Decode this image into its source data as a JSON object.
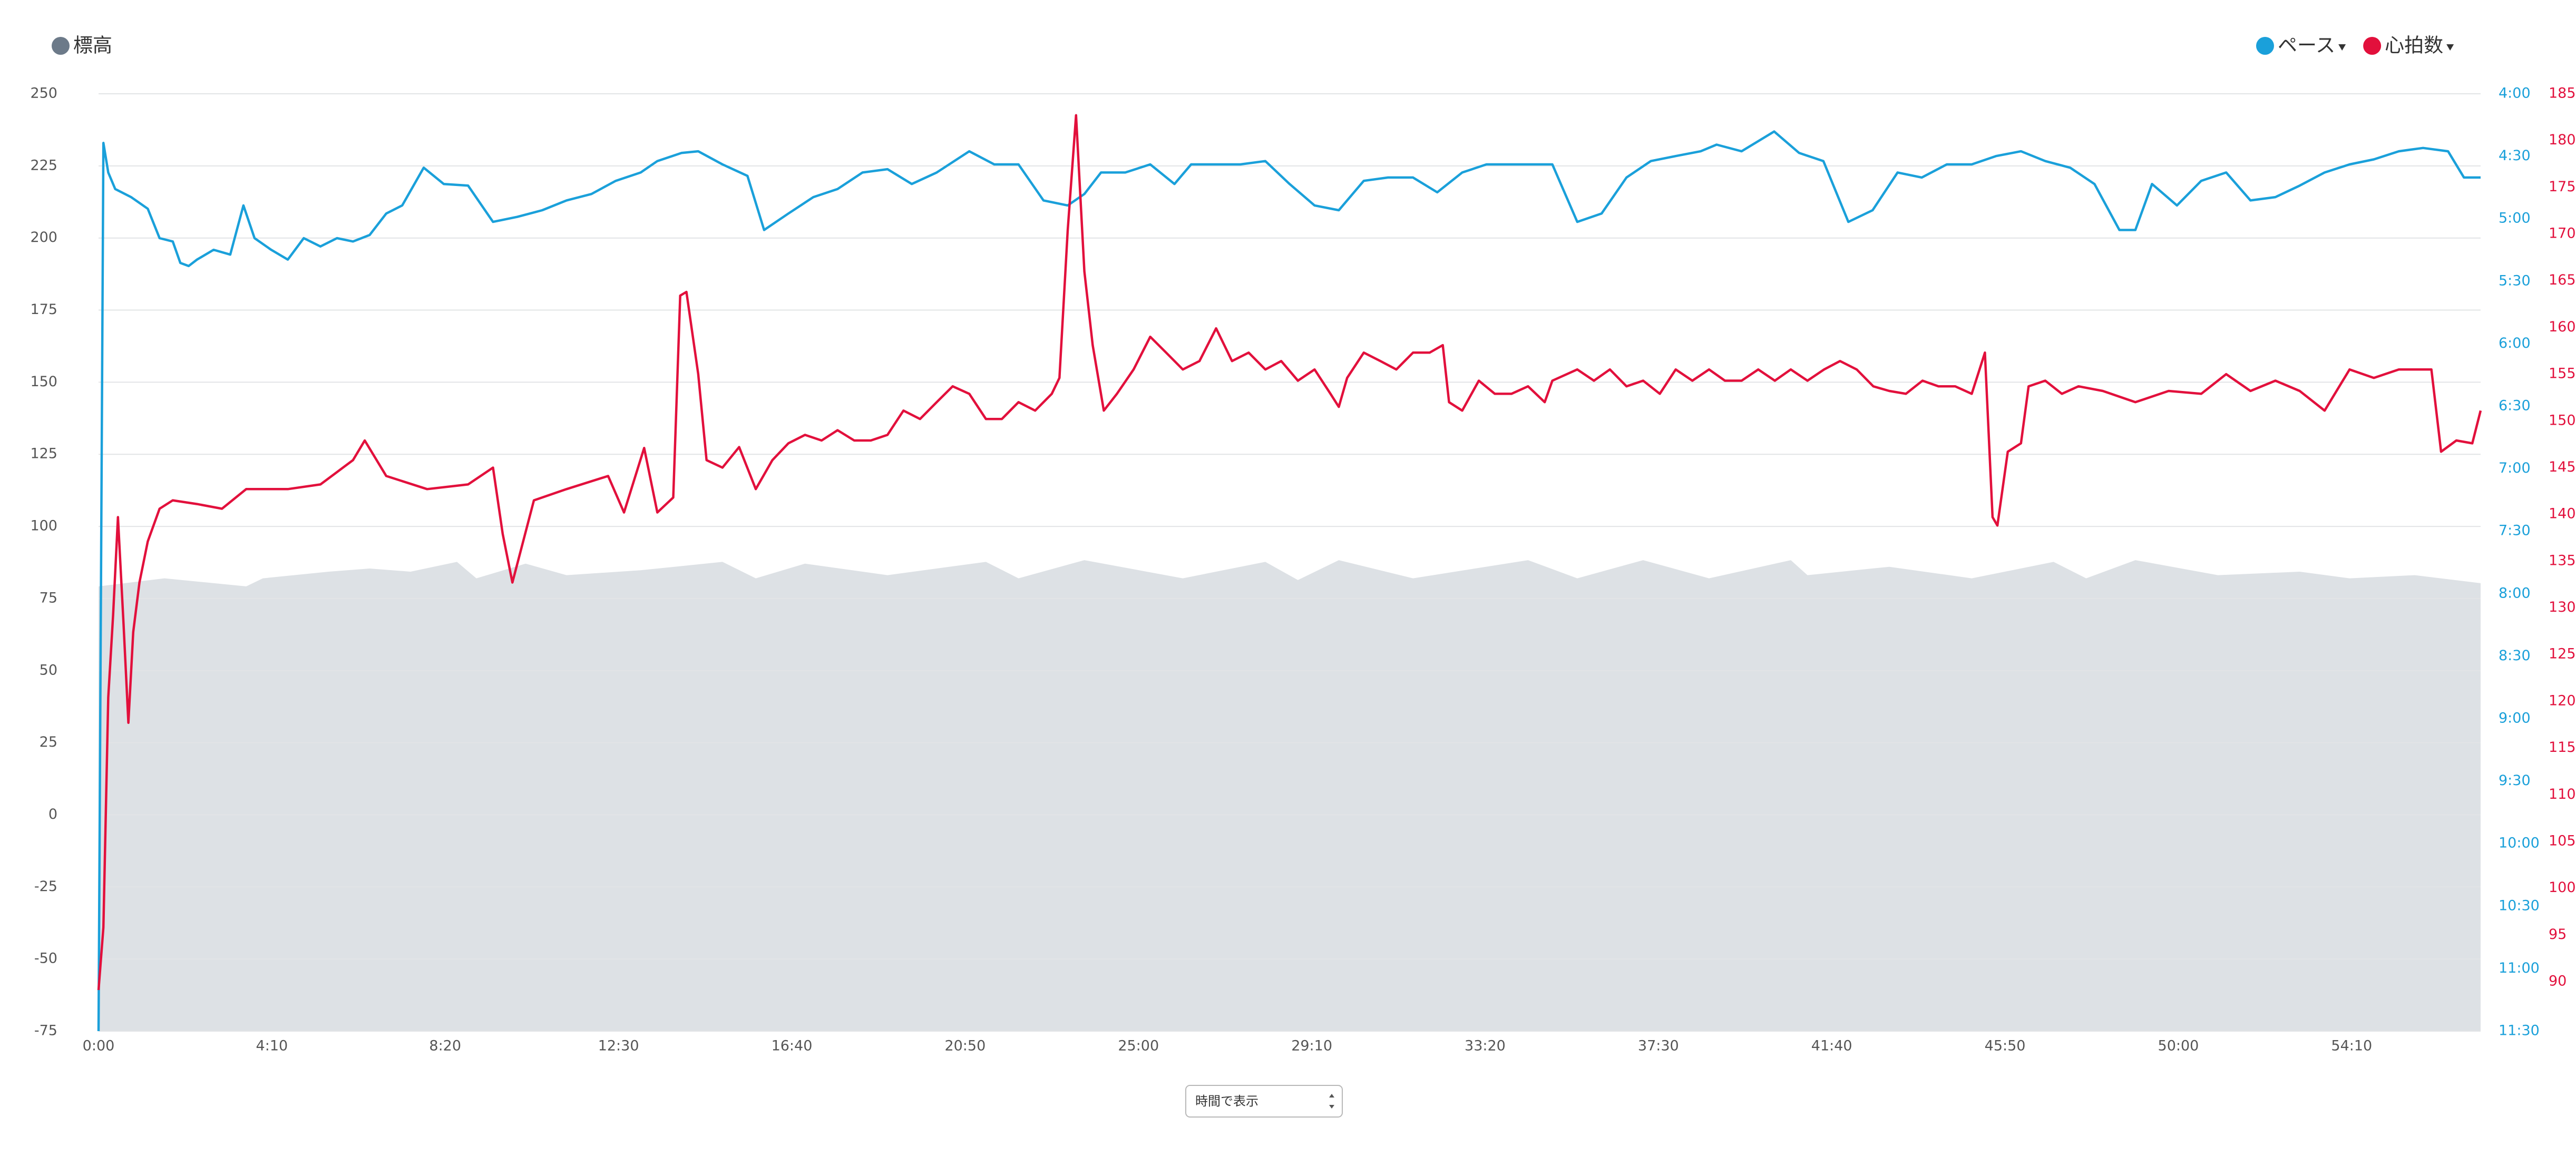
{
  "chart_data": {
    "type": "line",
    "xlim": [
      0,
      3436
    ],
    "xticks": [
      {
        "value": 0,
        "label": "0:00"
      },
      {
        "value": 250,
        "label": "4:10"
      },
      {
        "value": 500,
        "label": "8:20"
      },
      {
        "value": 750,
        "label": "12:30"
      },
      {
        "value": 1000,
        "label": "16:40"
      },
      {
        "value": 1250,
        "label": "20:50"
      },
      {
        "value": 1500,
        "label": "25:00"
      },
      {
        "value": 1750,
        "label": "29:10"
      },
      {
        "value": 2000,
        "label": "33:20"
      },
      {
        "value": 2250,
        "label": "37:30"
      },
      {
        "value": 2500,
        "label": "41:40"
      },
      {
        "value": 2750,
        "label": "45:50"
      },
      {
        "value": 3000,
        "label": "50:00"
      },
      {
        "value": 3250,
        "label": "54:10"
      }
    ],
    "ylim": [
      -75,
      250
    ],
    "yticks": [
      -75,
      -50,
      -25,
      0,
      25,
      50,
      75,
      100,
      125,
      150,
      175,
      200,
      225,
      250
    ],
    "y2lim": [
      240,
      690
    ],
    "y2_inverted": true,
    "y2ticks": [
      {
        "value": 240,
        "label": "4:00"
      },
      {
        "value": 270,
        "label": "4:30"
      },
      {
        "value": 300,
        "label": "5:00"
      },
      {
        "value": 330,
        "label": "5:30"
      },
      {
        "value": 360,
        "label": "6:00"
      },
      {
        "value": 390,
        "label": "6:30"
      },
      {
        "value": 420,
        "label": "7:00"
      },
      {
        "value": 450,
        "label": "7:30"
      },
      {
        "value": 480,
        "label": "8:00"
      },
      {
        "value": 510,
        "label": "8:30"
      },
      {
        "value": 540,
        "label": "9:00"
      },
      {
        "value": 570,
        "label": "9:30"
      },
      {
        "value": 600,
        "label": "10:00"
      },
      {
        "value": 630,
        "label": "10:30"
      },
      {
        "value": 660,
        "label": "11:00"
      },
      {
        "value": 690,
        "label": "11:30"
      }
    ],
    "y3lim": [
      84.7,
      185
    ],
    "y3ticks": [
      90,
      95,
      100,
      105,
      110,
      115,
      120,
      125,
      130,
      135,
      140,
      145,
      150,
      155,
      160,
      165,
      170,
      175,
      180,
      185
    ],
    "grid": true,
    "series": [
      {
        "name": "標高",
        "type": "area",
        "axis": "y",
        "color": "#6c7a89",
        "fill": "#dde1e5",
        "legend_position": "top-left",
        "dropdown": false,
        "x": [
          0,
          95,
          213,
          237,
          332,
          391,
          450,
          517,
          545,
          616,
          675,
          782,
          900,
          948,
          1019,
          1138,
          1280,
          1327,
          1422,
          1564,
          1683,
          1730,
          1789,
          1896,
          2062,
          2133,
          2228,
          2323,
          2441,
          2465,
          2583,
          2702,
          2820,
          2867,
          2938,
          3057,
          3175,
          3247,
          3341,
          3436
        ],
        "values": [
          79.2,
          82,
          79.2,
          82,
          84.3,
          85.4,
          84.3,
          87.7,
          82,
          87.1,
          83.1,
          84.8,
          87.7,
          82,
          87.1,
          83.1,
          87.7,
          82,
          88.3,
          82,
          87.7,
          81.4,
          88.3,
          82,
          88.3,
          82,
          88.3,
          82,
          88.3,
          83.1,
          86,
          82,
          87.7,
          82,
          88.3,
          83.1,
          84.3,
          82,
          83.1,
          80.3
        ]
      },
      {
        "name": "ペース",
        "type": "line",
        "axis": "y2",
        "color": "#1aa0da",
        "legend_position": "top-right",
        "dropdown": true,
        "x": [
          0,
          7,
          14,
          24,
          47,
          71,
          88,
          107,
          118,
          130,
          142,
          166,
          190,
          209,
          225,
          249,
          273,
          296,
          320,
          344,
          367,
          391,
          415,
          438,
          469,
          498,
          533,
          569,
          604,
          640,
          675,
          711,
          746,
          782,
          806,
          841,
          865,
          900,
          936,
          960,
          995,
          1031,
          1066,
          1102,
          1138,
          1173,
          1209,
          1256,
          1292,
          1327,
          1363,
          1398,
          1422,
          1446,
          1481,
          1517,
          1552,
          1576,
          1611,
          1647,
          1683,
          1718,
          1754,
          1789,
          1825,
          1860,
          1896,
          1931,
          1967,
          2002,
          2050,
          2097,
          2133,
          2168,
          2204,
          2239,
          2275,
          2311,
          2334,
          2370,
          2417,
          2453,
          2488,
          2524,
          2559,
          2595,
          2630,
          2666,
          2702,
          2737,
          2773,
          2808,
          2844,
          2879,
          2915,
          2938,
          2962,
          2998,
          3033,
          3069,
          3104,
          3140,
          3175,
          3211,
          3247,
          3282,
          3318,
          3353,
          3389,
          3412,
          3436
        ],
        "values": [
          690,
          263.6,
          277.8,
          285.7,
          289.6,
          295.2,
          309.3,
          310.9,
          321.2,
          322.7,
          319.6,
          314.9,
          317.2,
          293.6,
          309.3,
          314.9,
          319.6,
          309.3,
          313.3,
          309.3,
          310.9,
          307.8,
          297.5,
          293.6,
          275.5,
          283.3,
          284.1,
          301.5,
          299.1,
          295.9,
          291.2,
          288.1,
          281.8,
          277.8,
          272.3,
          268.4,
          267.6,
          273.9,
          279.4,
          305.4,
          297.5,
          289.6,
          285.7,
          277.8,
          276.2,
          283.3,
          277.8,
          267.6,
          273.9,
          273.9,
          291.2,
          293.6,
          288.1,
          277.8,
          277.8,
          273.9,
          283.3,
          273.9,
          273.9,
          273.9,
          272.3,
          283.3,
          293.6,
          295.9,
          281.8,
          280.2,
          280.2,
          287.3,
          277.8,
          273.9,
          273.9,
          273.9,
          301.5,
          297.5,
          280.2,
          272.3,
          269.9,
          267.6,
          264.4,
          267.6,
          258.1,
          268.4,
          272.3,
          301.5,
          295.9,
          277.8,
          280.2,
          273.9,
          273.9,
          269.9,
          267.6,
          272.3,
          275.5,
          283.3,
          305.4,
          305.4,
          283.3,
          293.6,
          281.8,
          277.8,
          291.2,
          289.6,
          284.1,
          277.8,
          273.9,
          271.5,
          267.6,
          266,
          267.6,
          280.2,
          280.2
        ]
      },
      {
        "name": "心拍数",
        "type": "line",
        "axis": "y3",
        "color": "#e2103c",
        "legend_position": "top-right",
        "dropdown": true,
        "x": [
          0,
          7,
          14,
          21,
          28,
          36,
          43,
          50,
          59,
          71,
          88,
          107,
          142,
          178,
          213,
          273,
          320,
          367,
          384,
          415,
          474,
          533,
          569,
          583,
          597,
          628,
          675,
          735,
          758,
          787,
          806,
          829,
          839,
          848,
          865,
          877,
          900,
          924,
          948,
          972,
          995,
          1019,
          1043,
          1066,
          1090,
          1114,
          1138,
          1161,
          1185,
          1209,
          1232,
          1256,
          1280,
          1303,
          1327,
          1351,
          1375,
          1386,
          1398,
          1410,
          1422,
          1434,
          1450,
          1469,
          1493,
          1517,
          1540,
          1564,
          1588,
          1612,
          1635,
          1659,
          1683,
          1706,
          1730,
          1754,
          1777,
          1789,
          1801,
          1825,
          1849,
          1872,
          1896,
          1920,
          1939,
          1948,
          1967,
          1991,
          2014,
          2038,
          2062,
          2086,
          2097,
          2133,
          2157,
          2180,
          2204,
          2228,
          2252,
          2275,
          2299,
          2323,
          2346,
          2370,
          2394,
          2418,
          2441,
          2465,
          2489,
          2512,
          2536,
          2560,
          2583,
          2607,
          2631,
          2654,
          2678,
          2702,
          2721,
          2732,
          2739,
          2754,
          2773,
          2784,
          2808,
          2832,
          2856,
          2891,
          2938,
          2986,
          3033,
          3069,
          3104,
          3140,
          3175,
          3211,
          3247,
          3282,
          3318,
          3365,
          3379,
          3401,
          3424,
          3436
        ],
        "values": [
          89.1,
          95.8,
          120.4,
          129.2,
          139.7,
          128.3,
          117.7,
          127.4,
          132.7,
          137.1,
          140.6,
          141.5,
          141.1,
          140.6,
          142.7,
          142.7,
          143.2,
          145.8,
          147.9,
          144.1,
          142.7,
          143.2,
          145,
          137.9,
          132.7,
          141.5,
          142.7,
          144.1,
          140.2,
          147.1,
          140.2,
          141.8,
          163.4,
          163.8,
          155,
          145.8,
          145,
          147.2,
          142.7,
          145.8,
          147.6,
          148.5,
          147.9,
          149,
          147.9,
          147.9,
          148.5,
          151.1,
          150.2,
          152,
          153.7,
          152.9,
          150.2,
          150.2,
          152,
          151.1,
          152.9,
          154.6,
          170.4,
          182.7,
          166,
          158.1,
          151.1,
          152.9,
          155.5,
          159,
          157.3,
          155.5,
          156.4,
          159.9,
          156.4,
          157.3,
          155.5,
          156.4,
          154.3,
          155.5,
          152.9,
          151.5,
          154.6,
          157.3,
          156.4,
          155.5,
          157.3,
          157.3,
          158.1,
          152,
          151.1,
          154.3,
          152.9,
          152.9,
          153.7,
          152,
          154.3,
          155.5,
          154.3,
          155.5,
          153.7,
          154.3,
          152.9,
          155.5,
          154.3,
          155.5,
          154.3,
          154.3,
          155.5,
          154.3,
          155.5,
          154.3,
          155.5,
          156.4,
          155.5,
          153.7,
          153.2,
          152.9,
          154.3,
          153.7,
          153.7,
          152.9,
          157.3,
          139.7,
          138.8,
          146.7,
          147.6,
          153.7,
          154.3,
          152.9,
          153.7,
          153.2,
          152,
          153.2,
          152.9,
          155,
          153.2,
          154.3,
          153.2,
          151.1,
          155.5,
          154.6,
          155.5,
          155.5,
          146.7,
          147.9,
          147.6,
          151.1
        ]
      }
    ]
  },
  "controls": {
    "x_mode_select": "時間で表示"
  }
}
